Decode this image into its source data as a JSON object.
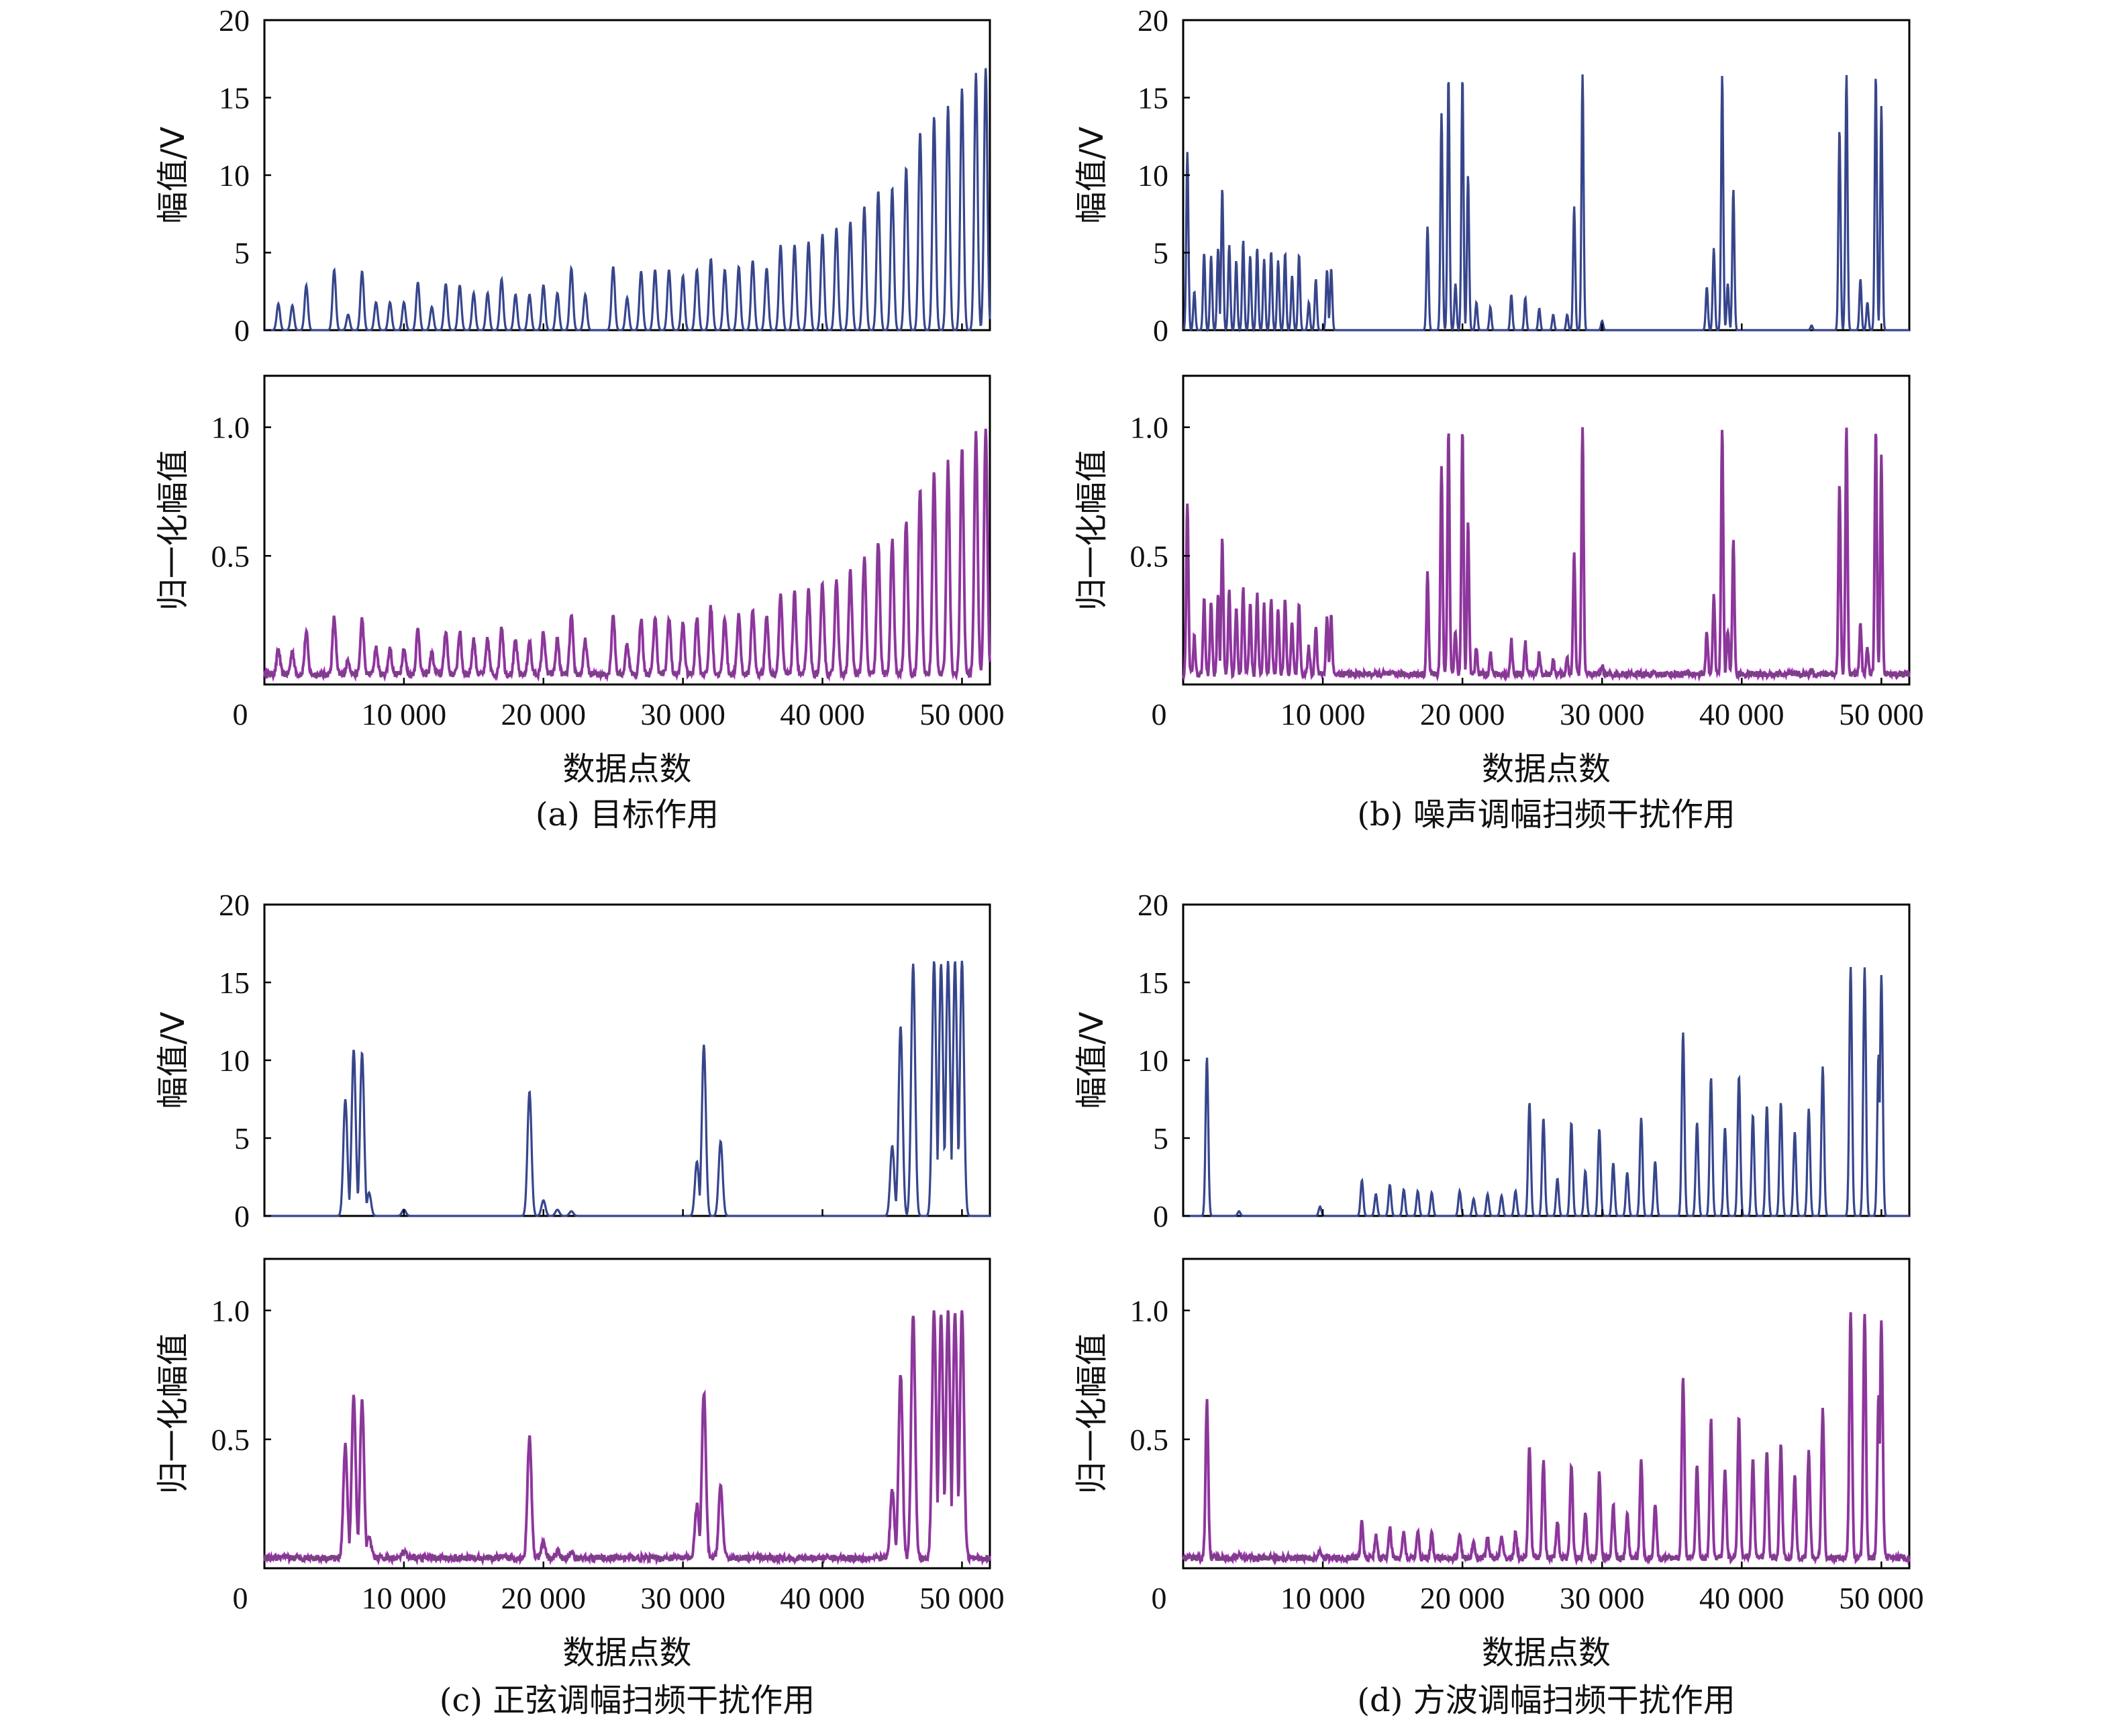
{
  "colors": {
    "raw": "#2b3f9e",
    "norm": "#a32cb8",
    "trace": "#555555",
    "axis": "#000000"
  },
  "chart_data": [
    {
      "id": "a",
      "caption": "(a) 目标作用",
      "type": "line",
      "xlabel": "数据点数",
      "xlim": [
        0,
        50000
      ],
      "xticks": [
        0,
        10000,
        20000,
        30000,
        40000,
        50000
      ],
      "xtick_labels": [
        "0",
        "10 000",
        "20 000",
        "30 000",
        "40 000",
        "50 000"
      ],
      "upper": {
        "ylabel": "幅值/V",
        "ylim": [
          0,
          20
        ],
        "yticks": [
          0,
          5,
          10,
          15,
          20
        ],
        "ytick_labels": [
          "0",
          "5",
          "10",
          "15",
          "20"
        ]
      },
      "lower": {
        "ylabel": "归一化幅值",
        "ylim": [
          0,
          1.2
        ],
        "yticks": [
          0.5,
          1.0
        ],
        "ytick_labels": [
          "0.5",
          "1.0"
        ],
        "baseline": 0.04
      },
      "peaks": [
        [
          1000,
          1.7
        ],
        [
          2000,
          1.6
        ],
        [
          3000,
          2.9
        ],
        [
          5000,
          3.9
        ],
        [
          6000,
          1.0
        ],
        [
          7000,
          3.8
        ],
        [
          8000,
          1.8
        ],
        [
          9000,
          1.8
        ],
        [
          10000,
          1.8
        ],
        [
          11000,
          3.1
        ],
        [
          12000,
          1.5
        ],
        [
          13000,
          3.0
        ],
        [
          14000,
          2.9
        ],
        [
          15000,
          2.4
        ],
        [
          16000,
          2.4
        ],
        [
          17000,
          3.3
        ],
        [
          18000,
          2.3
        ],
        [
          19000,
          2.3
        ],
        [
          20000,
          2.9
        ],
        [
          21000,
          2.4
        ],
        [
          22000,
          4.0
        ],
        [
          23000,
          2.3
        ],
        [
          25000,
          4.1
        ],
        [
          26000,
          2.1
        ],
        [
          27000,
          3.8
        ],
        [
          28000,
          3.9
        ],
        [
          29000,
          3.9
        ],
        [
          30000,
          3.5
        ],
        [
          31000,
          3.9
        ],
        [
          32000,
          4.6
        ],
        [
          33000,
          3.9
        ],
        [
          34000,
          4.1
        ],
        [
          35000,
          4.5
        ],
        [
          36000,
          4.0
        ],
        [
          37000,
          5.5
        ],
        [
          38000,
          5.5
        ],
        [
          39000,
          5.7
        ],
        [
          40000,
          6.2
        ],
        [
          41000,
          6.6
        ],
        [
          42000,
          7.0
        ],
        [
          43000,
          8.0
        ],
        [
          44000,
          9.0
        ],
        [
          45000,
          9.2
        ],
        [
          46000,
          10.5
        ],
        [
          47000,
          12.8
        ],
        [
          48000,
          13.8
        ],
        [
          49000,
          14.5
        ],
        [
          50000,
          15.6
        ],
        [
          51000,
          16.6
        ],
        [
          51700,
          16.9
        ]
      ],
      "widths": [
        250
      ]
    },
    {
      "id": "b",
      "caption": "(b) 噪声调幅扫频干扰作用",
      "type": "line",
      "xlabel": "数据点数",
      "xlim": [
        0,
        50000
      ],
      "xticks": [
        0,
        10000,
        20000,
        30000,
        40000,
        50000
      ],
      "xtick_labels": [
        "0",
        "10 000",
        "20 000",
        "30 000",
        "40 000",
        "50 000"
      ],
      "upper": {
        "ylabel": "幅值/V",
        "ylim": [
          0,
          20
        ],
        "yticks": [
          0,
          5,
          10,
          15,
          20
        ],
        "ytick_labels": [
          "0",
          "5",
          "10",
          "15",
          "20"
        ]
      },
      "lower": {
        "ylabel": "归一化幅值",
        "ylim": [
          0,
          1.2
        ],
        "yticks": [
          0.5,
          1.0
        ],
        "ytick_labels": [
          "0.5",
          "1.0"
        ],
        "baseline": 0.04
      },
      "peaks": [
        [
          300,
          11.5
        ],
        [
          800,
          2.5
        ],
        [
          1500,
          5.0
        ],
        [
          2000,
          4.8
        ],
        [
          2500,
          5.3
        ],
        [
          2800,
          9.2
        ],
        [
          3300,
          5.5
        ],
        [
          3800,
          4.5
        ],
        [
          4300,
          5.8
        ],
        [
          4800,
          4.8
        ],
        [
          5300,
          5.3
        ],
        [
          5800,
          4.6
        ],
        [
          6300,
          5.1
        ],
        [
          6800,
          4.5
        ],
        [
          7300,
          5.0
        ],
        [
          7800,
          3.5
        ],
        [
          8300,
          4.9
        ],
        [
          9000,
          1.8
        ],
        [
          9500,
          3.3
        ],
        [
          10300,
          3.9
        ],
        [
          10600,
          4.0
        ],
        [
          17500,
          6.7
        ],
        [
          18500,
          14.0
        ],
        [
          19000,
          16.4
        ],
        [
          19500,
          3.0
        ],
        [
          20000,
          16.4
        ],
        [
          20400,
          10.0
        ],
        [
          21000,
          1.8
        ],
        [
          22000,
          1.5
        ],
        [
          23500,
          2.3
        ],
        [
          24500,
          2.1
        ],
        [
          25500,
          1.4
        ],
        [
          26500,
          1.0
        ],
        [
          27500,
          1.0
        ],
        [
          28000,
          8.0
        ],
        [
          28600,
          16.5
        ],
        [
          30000,
          0.6
        ],
        [
          37500,
          2.8
        ],
        [
          38000,
          5.3
        ],
        [
          38600,
          16.5
        ],
        [
          39000,
          3.0
        ],
        [
          39400,
          9.1
        ],
        [
          45000,
          0.3
        ],
        [
          47000,
          13.0
        ],
        [
          47500,
          16.5
        ],
        [
          48500,
          3.3
        ],
        [
          49000,
          1.8
        ],
        [
          49600,
          16.5
        ],
        [
          50000,
          14.5
        ]
      ],
      "widths": [
        160
      ]
    },
    {
      "id": "c",
      "caption": "(c) 正弦调幅扫频干扰作用",
      "type": "line",
      "xlabel": "数据点数",
      "xlim": [
        0,
        50000
      ],
      "xticks": [
        0,
        10000,
        20000,
        30000,
        40000,
        50000
      ],
      "xtick_labels": [
        "0",
        "10 000",
        "20 000",
        "30 000",
        "40 000",
        "50 000"
      ],
      "upper": {
        "ylabel": "幅值/V",
        "ylim": [
          0,
          20
        ],
        "yticks": [
          0,
          5,
          10,
          15,
          20
        ],
        "ytick_labels": [
          "0",
          "5",
          "10",
          "15",
          "20"
        ]
      },
      "lower": {
        "ylabel": "归一化幅值",
        "ylim": [
          0,
          1.2
        ],
        "yticks": [
          0.5,
          1.0
        ],
        "ytick_labels": [
          "0.5",
          "1.0"
        ],
        "baseline": 0.04
      },
      "peaks": [
        [
          5800,
          7.5
        ],
        [
          6400,
          10.7
        ],
        [
          7000,
          10.5
        ],
        [
          7500,
          1.5
        ],
        [
          10000,
          0.4
        ],
        [
          19000,
          8.0
        ],
        [
          20000,
          1.0
        ],
        [
          21000,
          0.4
        ],
        [
          22000,
          0.3
        ],
        [
          31000,
          3.5
        ],
        [
          31500,
          11.0
        ],
        [
          32700,
          4.8
        ],
        [
          45000,
          4.5
        ],
        [
          45600,
          12.2
        ],
        [
          46500,
          16.2
        ],
        [
          48000,
          16.4
        ],
        [
          48500,
          16.2
        ],
        [
          49000,
          16.4
        ],
        [
          49500,
          16.4
        ],
        [
          50000,
          16.4
        ]
      ],
      "widths": [
        300
      ]
    },
    {
      "id": "d",
      "caption": "(d) 方波调幅扫频干扰作用",
      "type": "line",
      "xlabel": "数据点数",
      "xlim": [
        0,
        50000
      ],
      "xticks": [
        0,
        10000,
        20000,
        30000,
        40000,
        50000
      ],
      "xtick_labels": [
        "0",
        "10 000",
        "20 000",
        "30 000",
        "40 000",
        "50 000"
      ],
      "upper": {
        "ylabel": "幅值/V",
        "ylim": [
          0,
          20
        ],
        "yticks": [
          0,
          5,
          10,
          15,
          20
        ],
        "ytick_labels": [
          "0",
          "5",
          "10",
          "15",
          "20"
        ]
      },
      "lower": {
        "ylabel": "归一化幅值",
        "ylim": [
          0,
          1.2
        ],
        "yticks": [
          0.5,
          1.0
        ],
        "ytick_labels": [
          "0.5",
          "1.0"
        ],
        "baseline": 0.04
      },
      "peaks": [
        [
          1700,
          10.2
        ],
        [
          4000,
          0.3
        ],
        [
          9800,
          0.6
        ],
        [
          12800,
          2.3
        ],
        [
          13800,
          1.4
        ],
        [
          14800,
          2.0
        ],
        [
          15800,
          1.7
        ],
        [
          16800,
          1.6
        ],
        [
          17800,
          1.5
        ],
        [
          19800,
          1.6
        ],
        [
          20800,
          1.1
        ],
        [
          21800,
          1.4
        ],
        [
          22800,
          1.3
        ],
        [
          23800,
          1.6
        ],
        [
          24800,
          7.3
        ],
        [
          25800,
          6.3
        ],
        [
          26800,
          2.4
        ],
        [
          27800,
          6.0
        ],
        [
          28800,
          2.9
        ],
        [
          29800,
          5.6
        ],
        [
          30800,
          3.4
        ],
        [
          31800,
          2.8
        ],
        [
          32800,
          6.3
        ],
        [
          33800,
          3.5
        ],
        [
          35800,
          11.8
        ],
        [
          36800,
          6.0
        ],
        [
          37800,
          8.9
        ],
        [
          38800,
          5.7
        ],
        [
          39800,
          9.0
        ],
        [
          40800,
          6.5
        ],
        [
          41800,
          7.1
        ],
        [
          42800,
          7.3
        ],
        [
          43800,
          5.4
        ],
        [
          44800,
          6.9
        ],
        [
          45800,
          9.6
        ],
        [
          47800,
          16.0
        ],
        [
          48800,
          16.0
        ],
        [
          49800,
          10.4
        ],
        [
          50000,
          15.5
        ]
      ],
      "widths": [
        200
      ]
    }
  ]
}
